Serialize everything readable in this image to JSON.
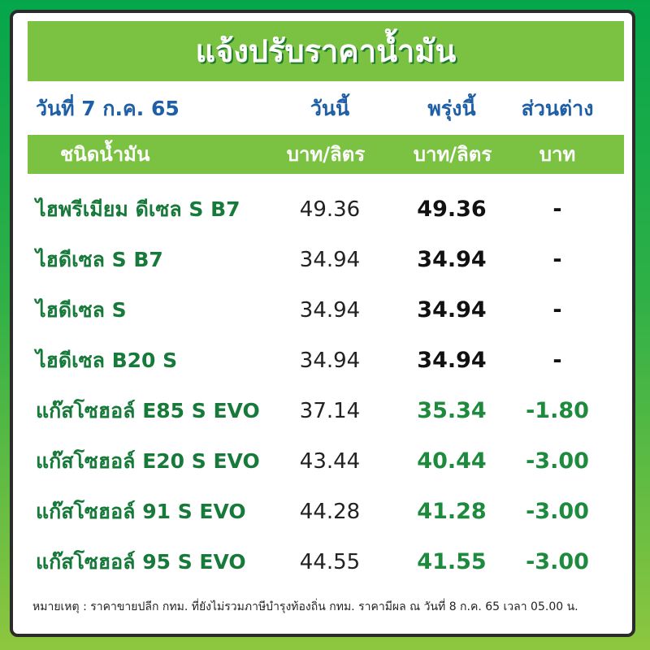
{
  "title": "แจ้งปรับราคาน้ำมัน",
  "date_label": "วันที่ 7 ก.ค. 65",
  "columns": {
    "today": "วันนี้",
    "tomorrow": "พรุ่งนี้",
    "diff": "ส่วนต่าง"
  },
  "units": {
    "type": "ชนิดน้ำมัน",
    "today": "บาท/ลิตร",
    "tomorrow": "บาท/ลิตร",
    "diff": "บาท"
  },
  "rows": [
    {
      "name": "ไฮพรีเมียม ดีเซล S B7",
      "today": "49.36",
      "tomorrow": "49.36",
      "diff": "-"
    },
    {
      "name": "ไฮดีเซล S B7",
      "today": "34.94",
      "tomorrow": "34.94",
      "diff": "-"
    },
    {
      "name": "ไฮดีเซล S",
      "today": "34.94",
      "tomorrow": "34.94",
      "diff": "-"
    },
    {
      "name": "ไฮดีเซล B20 S",
      "today": "34.94",
      "tomorrow": "34.94",
      "diff": "-"
    },
    {
      "name": "แก๊สโซฮอล์ E85 S EVO",
      "today": "37.14",
      "tomorrow": "35.34",
      "diff": "-1.80"
    },
    {
      "name": "แก๊สโซฮอล์ E20 S EVO",
      "today": "43.44",
      "tomorrow": "40.44",
      "diff": "-3.00"
    },
    {
      "name": "แก๊สโซฮอล์ 91 S EVO",
      "today": "44.28",
      "tomorrow": "41.28",
      "diff": "-3.00"
    },
    {
      "name": "แก๊สโซฮอล์ 95 S EVO",
      "today": "44.55",
      "tomorrow": "41.55",
      "diff": "-3.00"
    }
  ],
  "note": "หมายเหตุ :  ราคาขายปลีก กทม. ที่ยังไม่รวมภาษีบำรุงท้องถิ่น กทม.  ราคามีผล ณ วันที่ 8 ก.ค. 65 เวลา 05.00 น.",
  "colors": {
    "header_green": "#7cc242",
    "name_green": "#187a3a",
    "blue": "#1f5fa6",
    "decrease_green": "#1e8a3e"
  }
}
